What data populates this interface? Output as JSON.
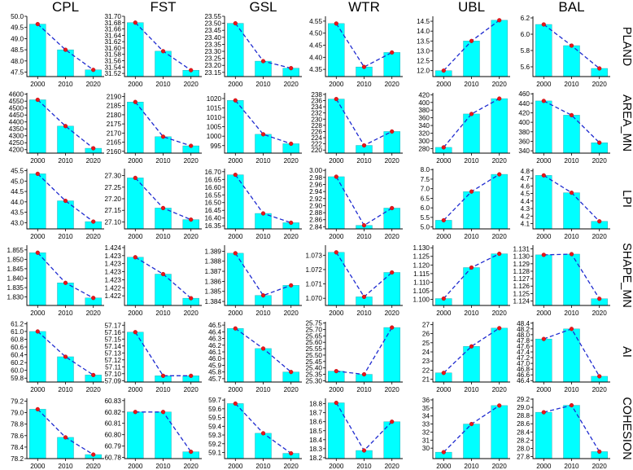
{
  "chart_data": {
    "type": "bar",
    "columns": [
      "CPL",
      "FST",
      "GSL",
      "WTR",
      "UBL",
      "BAL"
    ],
    "rows": [
      "PLAND",
      "AREA_MN",
      "LPI",
      "SHAPE_MN",
      "AI",
      "COHESION"
    ],
    "categories": [
      "2000",
      "2010",
      "2020"
    ],
    "colors": {
      "bar": "#00ffff",
      "line": "#1f2bd0",
      "point": "#e8161b"
    },
    "panels": [
      [
        {
          "values": [
            49.65,
            48.5,
            47.6
          ],
          "ylim": [
            47.3,
            50.0
          ],
          "ticks": [
            "47.5",
            "48.0",
            "48.5",
            "49.0",
            "49.5",
            "50.0"
          ]
        },
        {
          "values": [
            31.68,
            31.59,
            31.53
          ],
          "ylim": [
            31.51,
            31.7
          ],
          "ticks": [
            "31.52",
            "31.54",
            "31.56",
            "31.58",
            "31.60",
            "31.62",
            "31.64",
            "31.66",
            "31.68",
            "31.70"
          ]
        },
        {
          "values": [
            23.5,
            23.23,
            23.18
          ],
          "ylim": [
            23.12,
            23.55
          ],
          "ticks": [
            "23.15",
            "23.20",
            "23.25",
            "23.30",
            "23.35",
            "23.40",
            "23.45",
            "23.50",
            "23.55"
          ]
        },
        {
          "values": [
            4.54,
            4.36,
            4.42
          ],
          "ylim": [
            4.32,
            4.57
          ],
          "ticks": [
            "4.35",
            "4.40",
            "4.45",
            "4.50",
            "4.55"
          ]
        },
        {
          "values": [
            12.0,
            13.5,
            14.55
          ],
          "ylim": [
            11.7,
            14.75
          ],
          "ticks": [
            "12.0",
            "12.5",
            "13.0",
            "13.5",
            "14.0",
            "14.5"
          ]
        },
        {
          "values": [
            6.12,
            5.86,
            5.58
          ],
          "ylim": [
            5.48,
            6.22
          ],
          "ticks": [
            "5.6",
            "5.8",
            "6.0",
            "6.2"
          ]
        }
      ],
      [
        {
          "values": [
            4560,
            4370,
            4210
          ],
          "ylim": [
            4175,
            4610
          ],
          "ticks": [
            "4200",
            "4250",
            "4300",
            "4350",
            "4400",
            "4450",
            "4500",
            "4550",
            "4600"
          ]
        },
        {
          "values": [
            2187,
            2168,
            2163
          ],
          "ylim": [
            2159,
            2192
          ],
          "ticks": [
            "2160",
            "2165",
            "2170",
            "2175",
            "2180",
            "2185",
            "2190"
          ]
        },
        {
          "values": [
            1019,
            1001,
            996
          ],
          "ylim": [
            991,
            1023
          ],
          "ticks": [
            "995",
            "1000",
            "1005",
            "1010",
            "1015",
            "1020"
          ]
        },
        {
          "values": [
            236.5,
            221.5,
            226
          ],
          "ylim": [
            219,
            238.5
          ],
          "ticks": [
            "220",
            "222",
            "224",
            "226",
            "228",
            "230",
            "232",
            "234",
            "236",
            "238"
          ]
        },
        {
          "values": [
            283,
            370,
            410
          ],
          "ylim": [
            268,
            425
          ],
          "ticks": [
            "280",
            "300",
            "320",
            "340",
            "360",
            "380",
            "400",
            "420"
          ]
        },
        {
          "values": [
            445,
            415,
            357
          ],
          "ylim": [
            335,
            462
          ],
          "ticks": [
            "340",
            "360",
            "380",
            "400",
            "420",
            "440",
            "460"
          ]
        }
      ],
      [
        {
          "values": [
            45.35,
            44.05,
            43.05
          ],
          "ylim": [
            42.7,
            45.6
          ],
          "ticks": [
            "43.0",
            "43.5",
            "44.0",
            "44.5",
            "45.0",
            "45.5"
          ]
        },
        {
          "values": [
            27.29,
            27.16,
            27.11
          ],
          "ylim": [
            27.07,
            27.33
          ],
          "ticks": [
            "27.10",
            "27.15",
            "27.20",
            "27.25",
            "27.30"
          ]
        },
        {
          "values": [
            16.68,
            16.43,
            16.37
          ],
          "ylim": [
            16.33,
            16.72
          ],
          "ticks": [
            "16.35",
            "16.40",
            "16.45",
            "16.50",
            "16.55",
            "16.60",
            "16.65",
            "16.70"
          ]
        },
        {
          "values": [
            2.982,
            2.844,
            2.893
          ],
          "ylim": [
            2.834,
            3.005
          ],
          "ticks": [
            "2.84",
            "2.86",
            "2.88",
            "2.90",
            "2.92",
            "2.94",
            "2.96",
            "2.98",
            "3.00"
          ]
        },
        {
          "values": [
            5.35,
            6.85,
            7.75
          ],
          "ylim": [
            4.9,
            8.05
          ],
          "ticks": [
            "5.0",
            "5.5",
            "6.0",
            "6.5",
            "7.0",
            "7.5",
            "8.0"
          ]
        },
        {
          "values": [
            4.74,
            4.51,
            4.13
          ],
          "ylim": [
            4.03,
            4.83
          ],
          "ticks": [
            "4.1",
            "4.2",
            "4.3",
            "4.4",
            "4.5",
            "4.6",
            "4.7",
            "4.8"
          ]
        }
      ],
      [
        {
          "values": [
            1.8535,
            1.8375,
            1.8295
          ],
          "ylim": [
            1.8255,
            1.8575
          ],
          "ticks": [
            "1.825",
            "1.830",
            "1.835",
            "1.840",
            "1.845",
            "1.850",
            "1.855"
          ]
        },
        {
          "values": [
            1.4236,
            1.4229,
            1.4219
          ],
          "ylim": [
            1.4216,
            1.4241
          ],
          "ticks": [
            "1.422",
            "1.422",
            "1.423",
            "1.423",
            "1.423",
            "1.423",
            "1.424"
          ]
        },
        {
          "values": [
            1.3888,
            1.3846,
            1.3856
          ],
          "ylim": [
            1.3836,
            1.3896
          ],
          "ticks": [
            "1.384",
            "1.385",
            "1.386",
            "1.387",
            "1.388",
            "1.389"
          ]
        },
        {
          "values": [
            1.0732,
            1.0701,
            1.0718
          ],
          "ylim": [
            1.0695,
            1.0737
          ],
          "ticks": [
            "1.070",
            "1.071",
            "1.072",
            "1.073"
          ]
        },
        {
          "values": [
            1.1005,
            1.1185,
            1.1265
          ],
          "ylim": [
            1.0965,
            1.1315
          ],
          "ticks": [
            "1.100",
            "1.105",
            "1.110",
            "1.115",
            "1.120",
            "1.125",
            "1.130"
          ]
        },
        {
          "values": [
            1.1302,
            1.1303,
            1.1243
          ],
          "ylim": [
            1.1234,
            1.1315
          ],
          "ticks": [
            "1.124",
            "1.125",
            "1.126",
            "1.127",
            "1.128",
            "1.129",
            "1.130",
            "1.131"
          ]
        }
      ],
      [
        {
          "values": [
            61.0,
            60.35,
            59.88
          ],
          "ylim": [
            59.7,
            61.25
          ],
          "ticks": [
            "59.8",
            "60.0",
            "60.2",
            "60.4",
            "60.6",
            "60.8",
            "61.0",
            "61.2"
          ]
        },
        {
          "values": [
            57.16,
            57.097,
            57.097
          ],
          "ylim": [
            57.088,
            57.175
          ],
          "ticks": [
            "57.09",
            "57.10",
            "57.11",
            "57.12",
            "57.13",
            "57.14",
            "57.15",
            "57.16",
            "57.17"
          ]
        },
        {
          "values": [
            46.45,
            46.15,
            45.8
          ],
          "ylim": [
            45.65,
            46.55
          ],
          "ticks": [
            "45.7",
            "45.8",
            "45.9",
            "46.0",
            "46.1",
            "46.2",
            "46.3",
            "46.4",
            "46.5"
          ]
        },
        {
          "values": [
            25.375,
            25.35,
            25.715
          ],
          "ylim": [
            25.29,
            25.76
          ],
          "ticks": [
            "25.30",
            "25.35",
            "25.40",
            "25.45",
            "25.50",
            "25.55",
            "25.60",
            "25.65",
            "25.70",
            "25.75"
          ]
        },
        {
          "values": [
            21.7,
            24.6,
            26.6
          ],
          "ylim": [
            20.7,
            27.3
          ],
          "ticks": [
            "21",
            "22",
            "23",
            "24",
            "25",
            "26",
            "27"
          ]
        },
        {
          "values": [
            47.85,
            48.2,
            46.55
          ],
          "ylim": [
            46.35,
            48.45
          ],
          "ticks": [
            "46.4",
            "46.6",
            "46.8",
            "47.0",
            "47.2",
            "47.4",
            "47.6",
            "47.8",
            "48.0",
            "48.2",
            "48.4"
          ]
        }
      ],
      [
        {
          "values": [
            79.06,
            78.57,
            78.27
          ],
          "ylim": [
            78.2,
            79.25
          ],
          "ticks": [
            "78.2",
            "78.4",
            "78.6",
            "78.8",
            "79.0",
            "79.2"
          ]
        },
        {
          "values": [
            60.82,
            60.82,
            60.785
          ],
          "ylim": [
            60.779,
            60.832
          ],
          "ticks": [
            "60.78",
            "60.79",
            "60.80",
            "60.81",
            "60.82",
            "60.83"
          ]
        },
        {
          "values": [
            59.66,
            59.32,
            59.09
          ],
          "ylim": [
            59.03,
            59.72
          ],
          "ticks": [
            "59.1",
            "59.2",
            "59.3",
            "59.4",
            "59.5",
            "59.6",
            "59.7"
          ]
        },
        {
          "values": [
            18.81,
            18.28,
            18.6
          ],
          "ylim": [
            18.19,
            18.86
          ],
          "ticks": [
            "18.2",
            "18.3",
            "18.4",
            "18.5",
            "18.6",
            "18.7",
            "18.8"
          ]
        },
        {
          "values": [
            29.5,
            33.0,
            35.3
          ],
          "ylim": [
            28.7,
            36.2
          ],
          "ticks": [
            "30",
            "31",
            "32",
            "33",
            "34",
            "35",
            "36"
          ]
        },
        {
          "values": [
            28.88,
            29.05,
            27.92
          ],
          "ylim": [
            27.75,
            29.22
          ],
          "ticks": [
            "27.8",
            "28.0",
            "28.2",
            "28.4",
            "28.6",
            "28.8",
            "29.0",
            "29.2"
          ]
        }
      ]
    ]
  }
}
